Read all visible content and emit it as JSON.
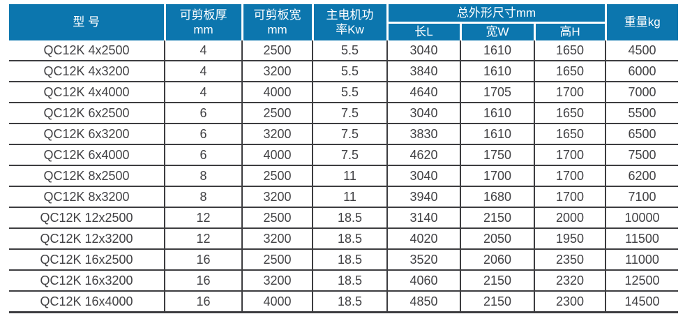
{
  "colors": {
    "header_bg": "#0c76ae",
    "header_text": "#ffffff",
    "grid_line": "#3d3d40",
    "data_text": "#414144",
    "page_bg": "#ffffff"
  },
  "table": {
    "header": {
      "model": "型 号",
      "thickness": "可剪板厚\nmm",
      "width": "可剪板宽\nmm",
      "power": "主电机功\n率Kw",
      "dimensions": "总外形尺寸mm",
      "length": "长L",
      "width_w": "宽W",
      "height": "高H",
      "weight": "重量kg"
    },
    "column_keys": [
      "model",
      "thickness",
      "width",
      "power",
      "length",
      "width_w",
      "height",
      "weight"
    ],
    "rows": [
      [
        "QC12K 4x2500",
        "4",
        "2500",
        "5.5",
        "3040",
        "1610",
        "1650",
        "4500"
      ],
      [
        "QC12K 4x3200",
        "4",
        "3200",
        "5.5",
        "3840",
        "1610",
        "1650",
        "6000"
      ],
      [
        "QC12K 4x4000",
        "4",
        "4000",
        "5.5",
        "4640",
        "1705",
        "1700",
        "7000"
      ],
      [
        "QC12K 6x2500",
        "6",
        "2500",
        "7.5",
        "3040",
        "1610",
        "1650",
        "5500"
      ],
      [
        "QC12K 6x3200",
        "6",
        "3200",
        "7.5",
        "3830",
        "1610",
        "1650",
        "6500"
      ],
      [
        "QC12K 6x4000",
        "6",
        "4000",
        "7.5",
        "4620",
        "1750",
        "1700",
        "7500"
      ],
      [
        "QC12K 8x2500",
        "8",
        "2500",
        "11",
        "3040",
        "1700",
        "1700",
        "6200"
      ],
      [
        "QC12K 8x3200",
        "8",
        "3200",
        "11",
        "3940",
        "1680",
        "1700",
        "7100"
      ],
      [
        "QC12K 12x2500",
        "12",
        "2500",
        "18.5",
        "3140",
        "2150",
        "2000",
        "10000"
      ],
      [
        "QC12K 12x3200",
        "12",
        "3200",
        "18.5",
        "4020",
        "2050",
        "1950",
        "11500"
      ],
      [
        "QC12K 16x2500",
        "16",
        "2500",
        "18.5",
        "3520",
        "2060",
        "2350",
        "11000"
      ],
      [
        "QC12K 16x3200",
        "16",
        "3200",
        "18.5",
        "4060",
        "2150",
        "2320",
        "12500"
      ],
      [
        "QC12K 16x4000",
        "16",
        "4000",
        "18.5",
        "4850",
        "2150",
        "2300",
        "14500"
      ]
    ]
  }
}
